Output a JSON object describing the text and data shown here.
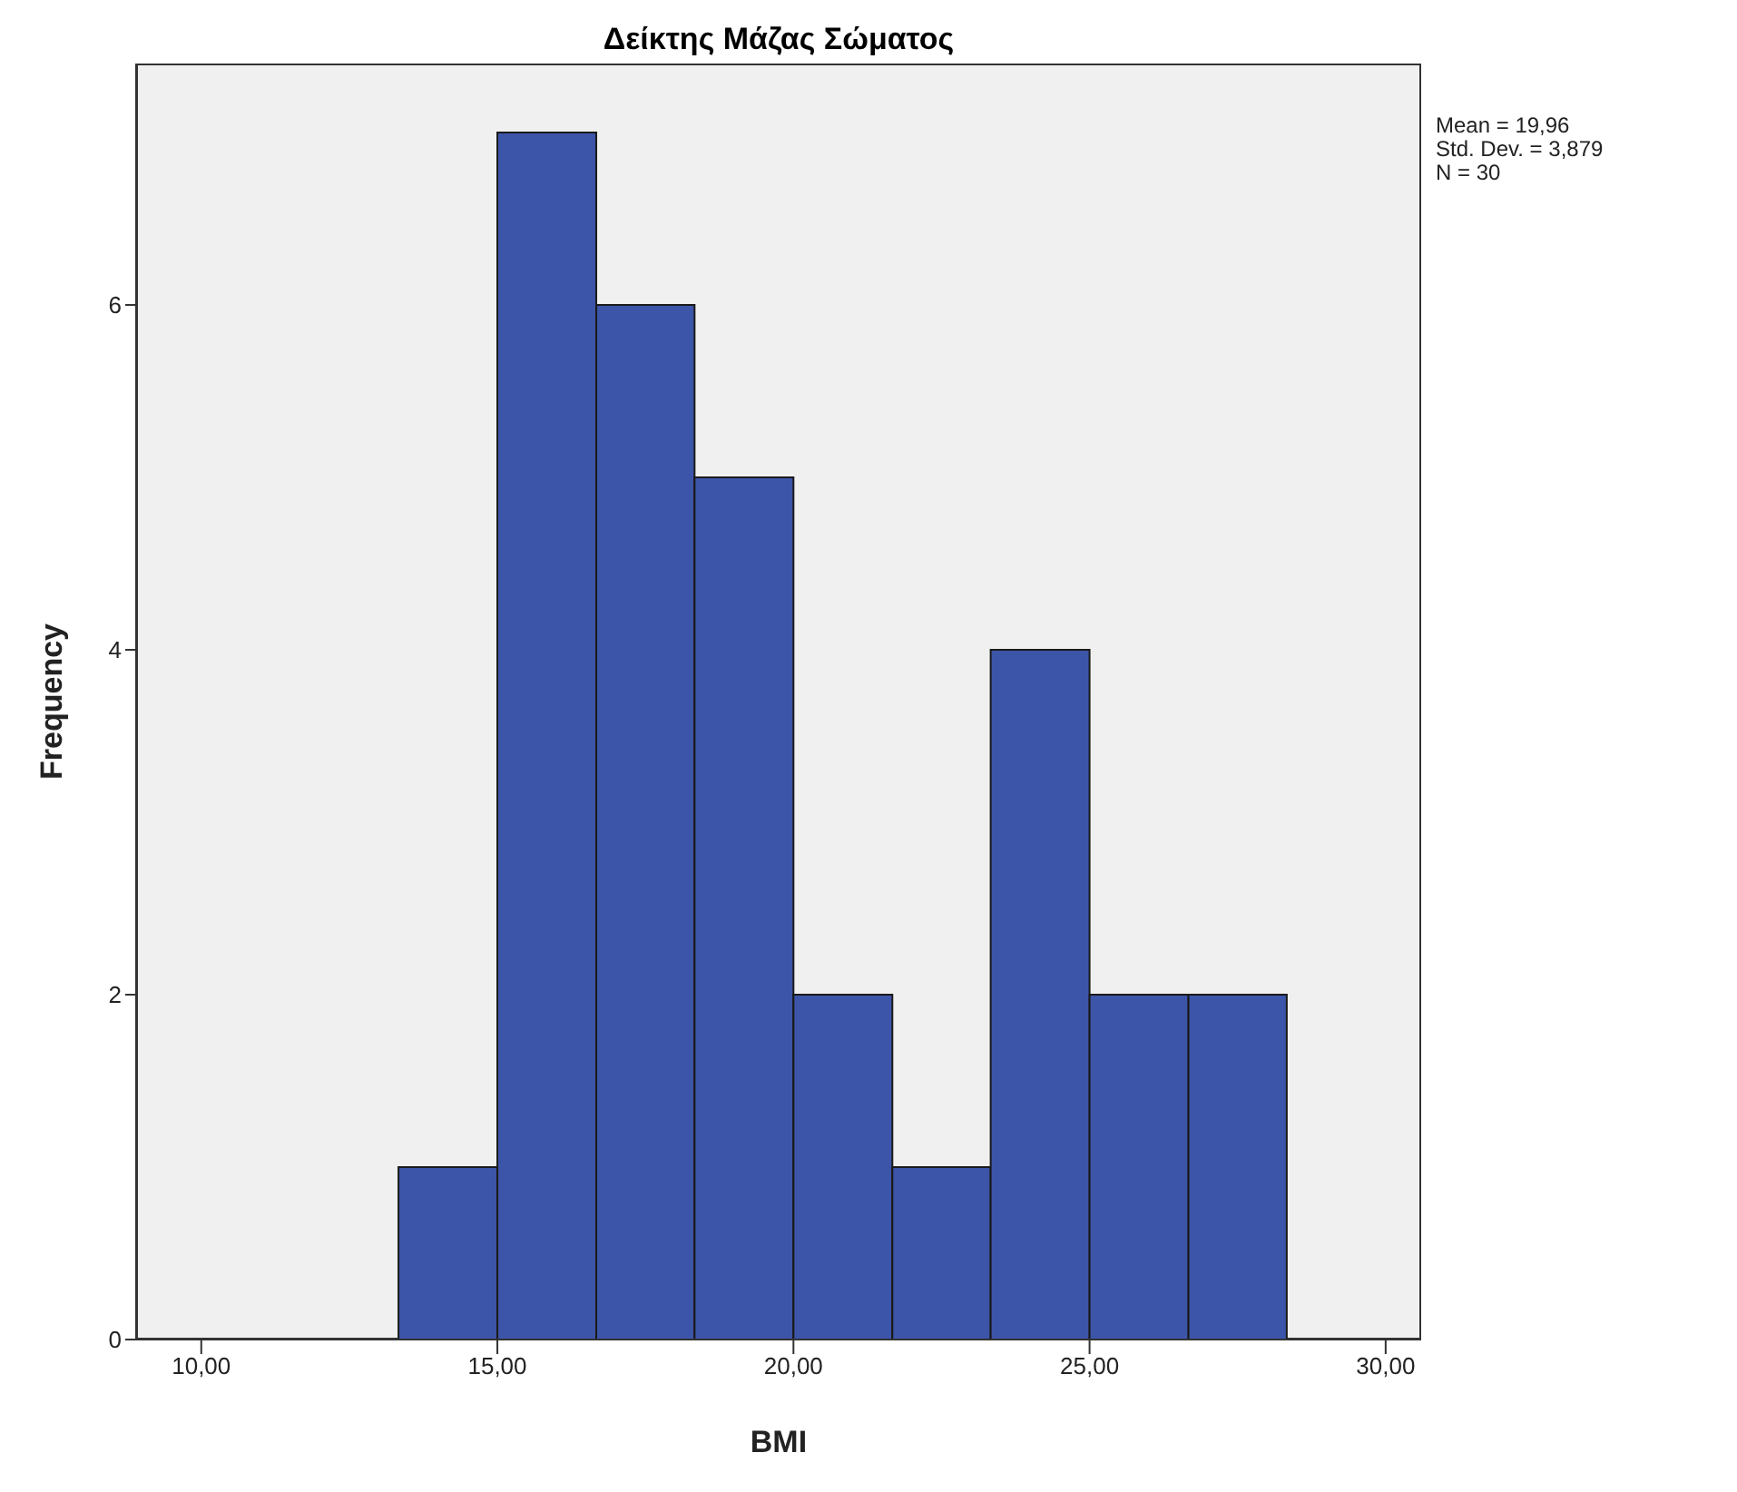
{
  "chart_data": {
    "type": "histogram",
    "title": "Δείκτης Μάζας Σώματος",
    "xlabel": "BMI",
    "ylabel": "Frequency",
    "bins": [
      13.33,
      15,
      16.67,
      18.33,
      20,
      21.67,
      23.33,
      25,
      26.67,
      28.33
    ],
    "values": [
      1,
      7,
      6,
      5,
      2,
      1,
      4,
      2,
      2
    ],
    "color": "#3d55a8",
    "xlim": [
      8.9,
      30.6
    ],
    "xticks": [
      {
        "value": 10,
        "label": "10,00"
      },
      {
        "value": 15,
        "label": "15,00"
      },
      {
        "value": 20,
        "label": "20,00"
      },
      {
        "value": 25,
        "label": "25,00"
      },
      {
        "value": 30,
        "label": "30,00"
      }
    ],
    "ylim": [
      0,
      7.4
    ],
    "yticks": [
      0,
      2,
      4,
      6
    ],
    "annotations": [
      "Mean = 19,96",
      "Std. Dev. = 3,879",
      "N = 30"
    ]
  }
}
